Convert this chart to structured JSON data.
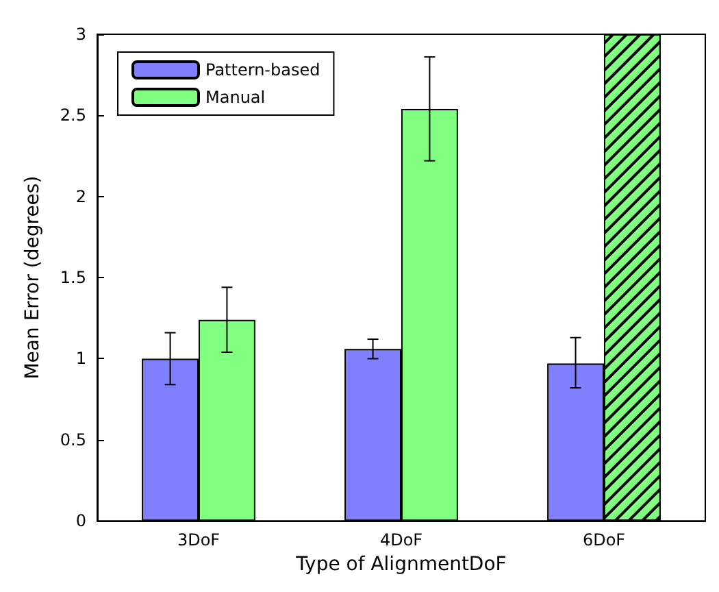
{
  "chart_data": {
    "type": "bar",
    "xlabel": "Type of AlignmentDoF",
    "ylabel": "Mean Error (degrees)",
    "categories": [
      "3DoF",
      "4DoF",
      "6DoF"
    ],
    "series": [
      {
        "name": "Pattern-based",
        "color": "#8080ff",
        "values": [
          1.0,
          1.06,
          0.97
        ],
        "errors": [
          [
            0.84,
            1.16
          ],
          [
            1.0,
            1.12
          ],
          [
            0.82,
            1.13
          ]
        ]
      },
      {
        "name": "Manual",
        "color": "#80ff80",
        "values": [
          1.24,
          2.54,
          3.0
        ],
        "errors": [
          [
            1.04,
            1.44
          ],
          [
            2.22,
            2.86
          ],
          null
        ]
      }
    ],
    "ylim": [
      0,
      3
    ],
    "yticks": [
      0,
      0.5,
      1,
      1.5,
      2,
      2.5,
      3
    ],
    "grid": false,
    "legend": "top left"
  }
}
